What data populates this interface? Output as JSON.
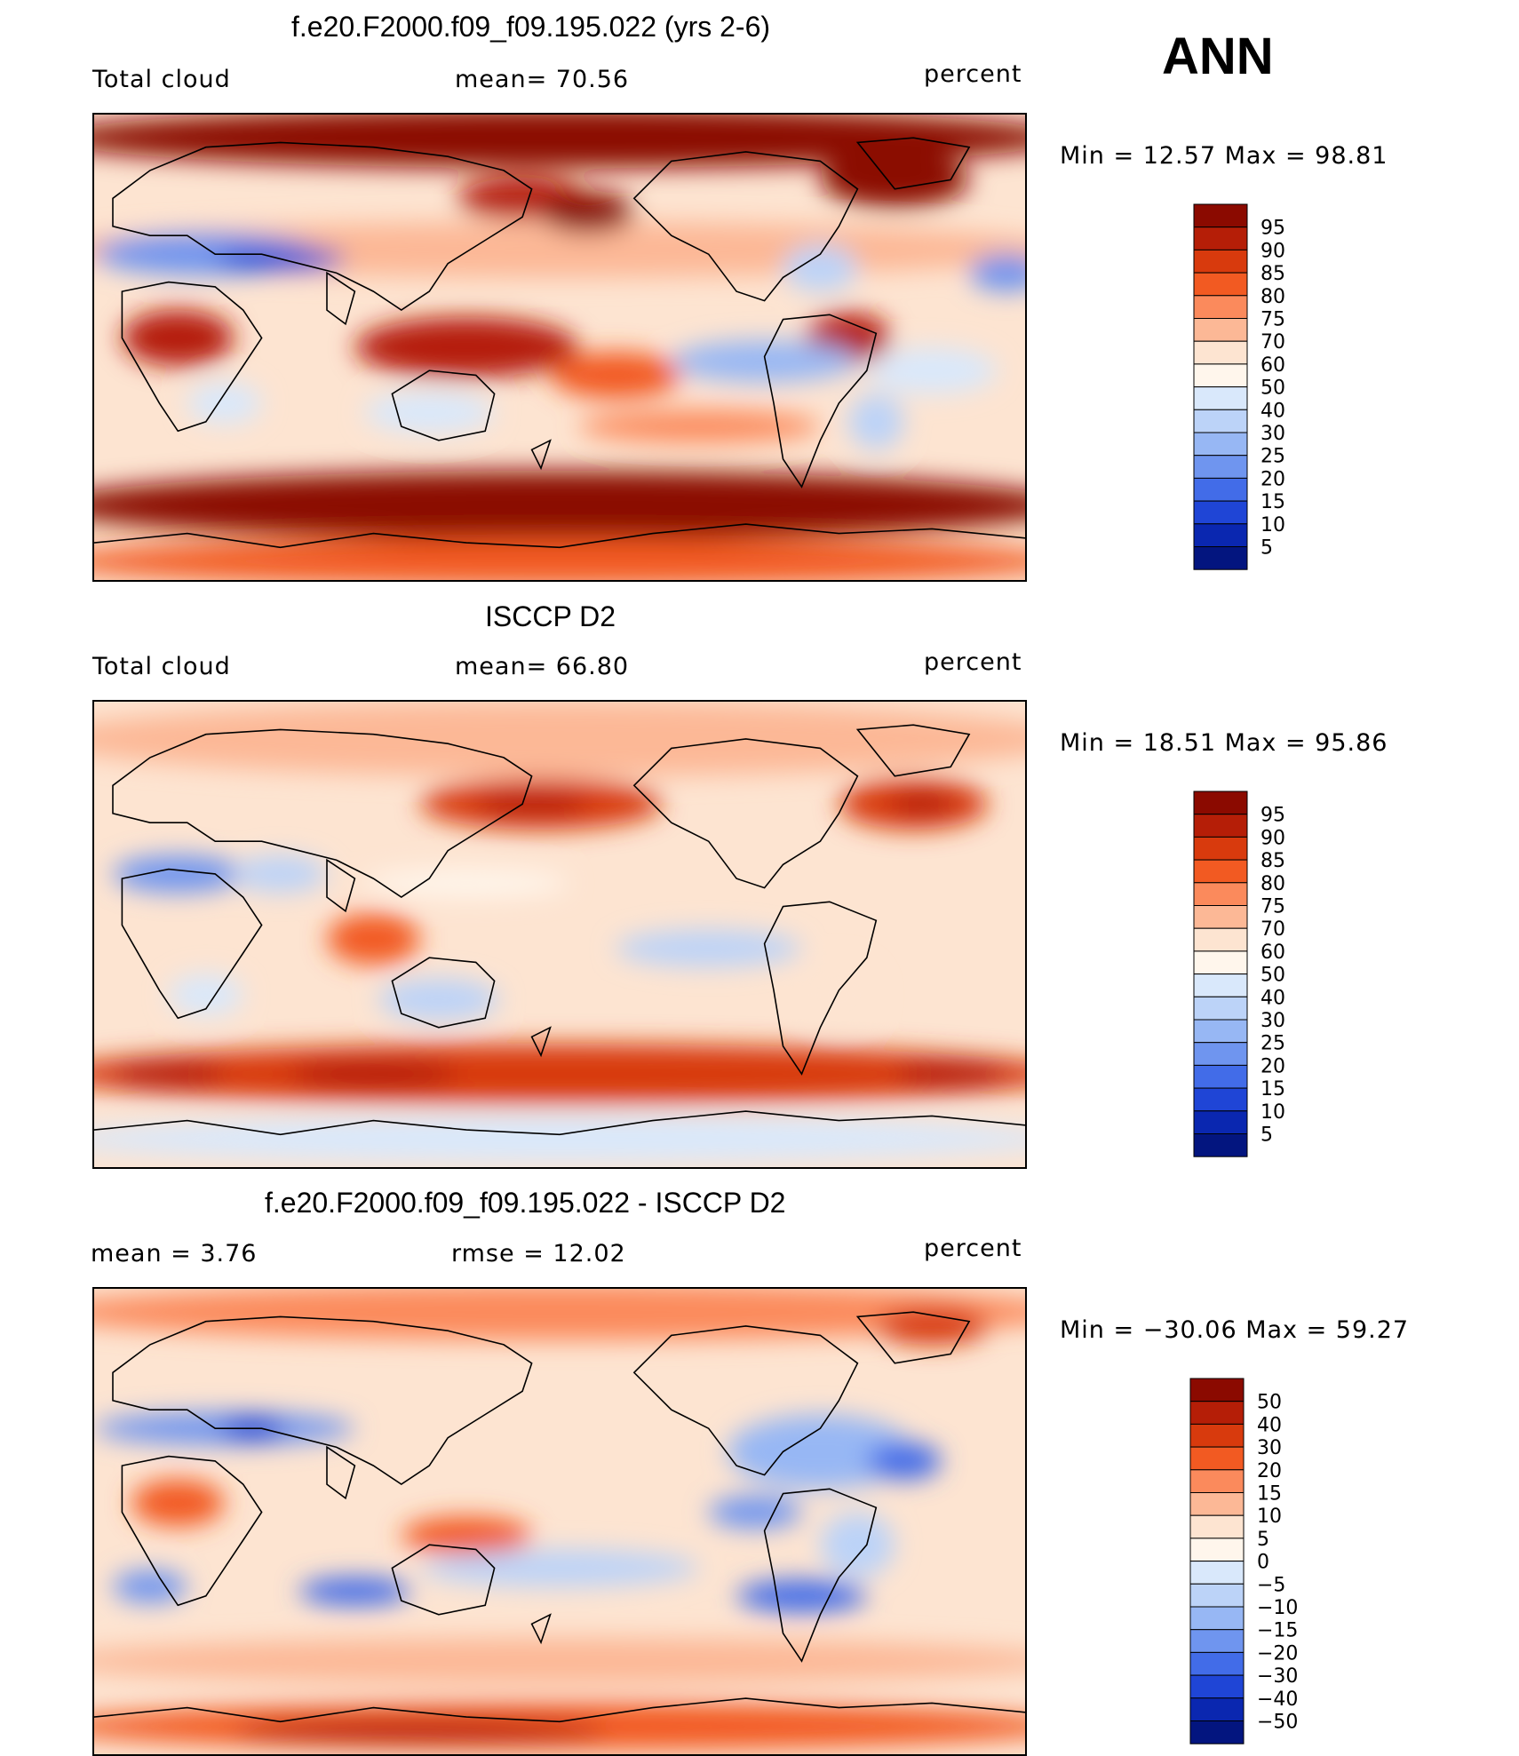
{
  "season": "ANN",
  "chart_data": [
    {
      "type": "heatmap",
      "title": "f.e20.F2000.f09_f09.195.022 (yrs 2-6)",
      "left_label": "Total cloud",
      "center_label": "mean=   70.56",
      "units": "percent",
      "stats": "Min  =   12.57  Max  =   98.81",
      "mean": 70.56,
      "min": 12.57,
      "max": 98.81,
      "colorbar": {
        "levels": [
          "95",
          "90",
          "85",
          "80",
          "75",
          "70",
          "60",
          "50",
          "40",
          "30",
          "25",
          "20",
          "15",
          "10",
          "5"
        ],
        "colors": [
          "#8b0a00",
          "#b51e07",
          "#d83a0d",
          "#f25a22",
          "#fb8a5c",
          "#fcb896",
          "#fde4d1",
          "#fff6ec",
          "#d9e8fb",
          "#bcd3f8",
          "#97b7f4",
          "#6f95ef",
          "#426ce8",
          "#1f45d6",
          "#0a27b0",
          "#03157f"
        ]
      },
      "map_fill": {
        "x": 0,
        "y": 0,
        "w": 1710,
        "h": 1963
      },
      "field_blobs": [
        {
          "x": 0.5,
          "y": 0.05,
          "w": 1.1,
          "h": 0.13,
          "c": 0
        },
        {
          "x": 0.5,
          "y": 0.84,
          "w": 1.1,
          "h": 0.15,
          "c": 0
        },
        {
          "x": 0.5,
          "y": 0.96,
          "w": 1.1,
          "h": 0.1,
          "c": 3
        },
        {
          "x": 0.5,
          "y": 0.29,
          "w": 1.1,
          "h": 0.12,
          "c": 5
        },
        {
          "x": 0.12,
          "y": 0.3,
          "w": 0.24,
          "h": 0.09,
          "c": 11
        },
        {
          "x": 0.2,
          "y": 0.31,
          "w": 0.14,
          "h": 0.05,
          "c": 13
        },
        {
          "x": 0.98,
          "y": 0.34,
          "w": 0.08,
          "h": 0.08,
          "c": 11
        },
        {
          "x": 0.09,
          "y": 0.48,
          "w": 0.12,
          "h": 0.12,
          "c": 1
        },
        {
          "x": 0.4,
          "y": 0.5,
          "w": 0.24,
          "h": 0.13,
          "c": 1
        },
        {
          "x": 0.56,
          "y": 0.56,
          "w": 0.14,
          "h": 0.1,
          "c": 3
        },
        {
          "x": 0.46,
          "y": 0.18,
          "w": 0.14,
          "h": 0.09,
          "c": 1
        },
        {
          "x": 0.53,
          "y": 0.21,
          "w": 0.1,
          "h": 0.09,
          "c": 0
        },
        {
          "x": 0.86,
          "y": 0.14,
          "w": 0.16,
          "h": 0.12,
          "c": 0
        },
        {
          "x": 0.81,
          "y": 0.48,
          "w": 0.09,
          "h": 0.11,
          "c": 1
        },
        {
          "x": 0.72,
          "y": 0.53,
          "w": 0.2,
          "h": 0.09,
          "c": 10
        },
        {
          "x": 0.9,
          "y": 0.55,
          "w": 0.14,
          "h": 0.1,
          "c": 8
        },
        {
          "x": 0.65,
          "y": 0.67,
          "w": 0.26,
          "h": 0.07,
          "c": 4
        },
        {
          "x": 0.36,
          "y": 0.64,
          "w": 0.14,
          "h": 0.09,
          "c": 8
        },
        {
          "x": 0.14,
          "y": 0.62,
          "w": 0.08,
          "h": 0.09,
          "c": 8
        },
        {
          "x": 0.84,
          "y": 0.66,
          "w": 0.06,
          "h": 0.12,
          "c": 9
        },
        {
          "x": 0.78,
          "y": 0.33,
          "w": 0.08,
          "h": 0.1,
          "c": 9
        }
      ]
    },
    {
      "type": "heatmap",
      "title": "ISCCP D2",
      "left_label": "Total cloud",
      "center_label": "mean=   66.80",
      "units": "percent",
      "stats": "Min  =   18.51  Max  =   95.86",
      "mean": 66.8,
      "min": 18.51,
      "max": 95.86,
      "colorbar": {
        "levels": [
          "95",
          "90",
          "85",
          "80",
          "75",
          "70",
          "60",
          "50",
          "40",
          "30",
          "25",
          "20",
          "15",
          "10",
          "5"
        ],
        "colors": [
          "#8b0a00",
          "#b51e07",
          "#d83a0d",
          "#f25a22",
          "#fb8a5c",
          "#fcb896",
          "#fde4d1",
          "#fff6ec",
          "#d9e8fb",
          "#bcd3f8",
          "#97b7f4",
          "#6f95ef",
          "#426ce8",
          "#1f45d6",
          "#0a27b0",
          "#03157f"
        ]
      },
      "field_blobs": [
        {
          "x": 0.5,
          "y": 0.08,
          "w": 1.1,
          "h": 0.16,
          "c": 5
        },
        {
          "x": 0.5,
          "y": 0.8,
          "w": 1.1,
          "h": 0.13,
          "c": 2
        },
        {
          "x": 0.5,
          "y": 0.94,
          "w": 1.1,
          "h": 0.1,
          "c": 8
        },
        {
          "x": 0.48,
          "y": 0.22,
          "w": 0.26,
          "h": 0.11,
          "c": 2
        },
        {
          "x": 0.47,
          "y": 0.22,
          "w": 0.12,
          "h": 0.05,
          "c": 1
        },
        {
          "x": 0.88,
          "y": 0.22,
          "w": 0.16,
          "h": 0.11,
          "c": 2
        },
        {
          "x": 0.89,
          "y": 0.22,
          "w": 0.07,
          "h": 0.05,
          "c": 1
        },
        {
          "x": 0.09,
          "y": 0.37,
          "w": 0.14,
          "h": 0.08,
          "c": 11
        },
        {
          "x": 0.2,
          "y": 0.37,
          "w": 0.1,
          "h": 0.08,
          "c": 9
        },
        {
          "x": 0.4,
          "y": 0.39,
          "w": 0.22,
          "h": 0.06,
          "c": 7
        },
        {
          "x": 0.3,
          "y": 0.51,
          "w": 0.1,
          "h": 0.11,
          "c": 3
        },
        {
          "x": 0.66,
          "y": 0.53,
          "w": 0.2,
          "h": 0.08,
          "c": 9
        },
        {
          "x": 0.37,
          "y": 0.64,
          "w": 0.13,
          "h": 0.09,
          "c": 9
        },
        {
          "x": 0.12,
          "y": 0.63,
          "w": 0.08,
          "h": 0.09,
          "c": 8
        },
        {
          "x": 0.8,
          "y": 0.63,
          "w": 0.08,
          "h": 0.14,
          "c": 6
        },
        {
          "x": 0.3,
          "y": 0.8,
          "w": 0.18,
          "h": 0.06,
          "c": 1
        },
        {
          "x": 0.92,
          "y": 0.8,
          "w": 0.12,
          "h": 0.06,
          "c": 1
        },
        {
          "x": 0.08,
          "y": 0.8,
          "w": 0.12,
          "h": 0.06,
          "c": 1
        }
      ]
    },
    {
      "type": "heatmap",
      "title": "f.e20.F2000.f09_f09.195.022 - ISCCP D2",
      "left_label": "mean  =     3.76",
      "center_label": "rmse  =    12.02",
      "units": "percent",
      "stats": "Min  = −30.06  Max  =    59.27",
      "mean": 3.76,
      "rmse": 12.02,
      "min": -30.06,
      "max": 59.27,
      "colorbar": {
        "levels": [
          "50",
          "40",
          "30",
          "20",
          "15",
          "10",
          "5",
          "0",
          "−5",
          "−10",
          "−15",
          "−20",
          "−30",
          "−40",
          "−50"
        ],
        "colors": [
          "#8b0a00",
          "#b51e07",
          "#d83a0d",
          "#f25a22",
          "#fb8a5c",
          "#fcb896",
          "#fde4d1",
          "#fff6ec",
          "#d9e8fb",
          "#bcd3f8",
          "#97b7f4",
          "#6f95ef",
          "#426ce8",
          "#1f45d6",
          "#0a27b0",
          "#03157f"
        ]
      },
      "field_blobs": [
        {
          "x": 0.5,
          "y": 0.05,
          "w": 1.1,
          "h": 0.12,
          "c": 4
        },
        {
          "x": 0.5,
          "y": 0.94,
          "w": 1.1,
          "h": 0.1,
          "c": 3
        },
        {
          "x": 0.35,
          "y": 0.95,
          "w": 0.4,
          "h": 0.05,
          "c": 1
        },
        {
          "x": 0.5,
          "y": 0.8,
          "w": 1.1,
          "h": 0.1,
          "c": 5
        },
        {
          "x": 0.14,
          "y": 0.3,
          "w": 0.28,
          "h": 0.07,
          "c": 11
        },
        {
          "x": 0.17,
          "y": 0.3,
          "w": 0.07,
          "h": 0.05,
          "c": 13
        },
        {
          "x": 0.9,
          "y": 0.08,
          "w": 0.12,
          "h": 0.08,
          "c": 2
        },
        {
          "x": 0.78,
          "y": 0.35,
          "w": 0.2,
          "h": 0.16,
          "c": 10
        },
        {
          "x": 0.87,
          "y": 0.37,
          "w": 0.08,
          "h": 0.08,
          "c": 12
        },
        {
          "x": 0.09,
          "y": 0.46,
          "w": 0.1,
          "h": 0.1,
          "c": 3
        },
        {
          "x": 0.4,
          "y": 0.53,
          "w": 0.14,
          "h": 0.08,
          "c": 3
        },
        {
          "x": 0.28,
          "y": 0.65,
          "w": 0.12,
          "h": 0.06,
          "c": 12
        },
        {
          "x": 0.76,
          "y": 0.66,
          "w": 0.14,
          "h": 0.07,
          "c": 12
        },
        {
          "x": 0.82,
          "y": 0.55,
          "w": 0.08,
          "h": 0.14,
          "c": 9
        },
        {
          "x": 0.5,
          "y": 0.6,
          "w": 0.3,
          "h": 0.08,
          "c": 9
        },
        {
          "x": 0.06,
          "y": 0.64,
          "w": 0.08,
          "h": 0.07,
          "c": 11
        },
        {
          "x": 0.71,
          "y": 0.48,
          "w": 0.1,
          "h": 0.07,
          "c": 11
        }
      ]
    }
  ]
}
